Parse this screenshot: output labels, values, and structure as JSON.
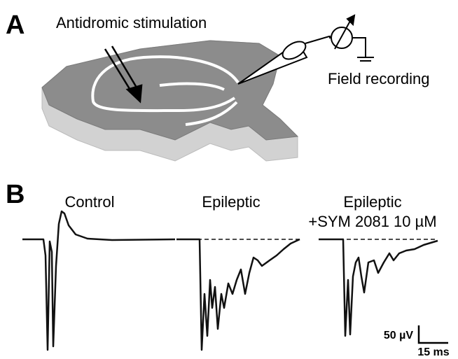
{
  "panel_a": {
    "label": "A",
    "stimulation_label": "Antidromic stimulation",
    "recording_label": "Field recording"
  },
  "panel_b": {
    "label": "B",
    "traces": [
      {
        "title": "Control"
      },
      {
        "title": "Epileptic"
      },
      {
        "title": "Epileptic",
        "subtitle": "+SYM 2081 10 µM"
      }
    ],
    "scale_bar": {
      "amplitude": "50 µV",
      "time": "15 ms"
    }
  }
}
